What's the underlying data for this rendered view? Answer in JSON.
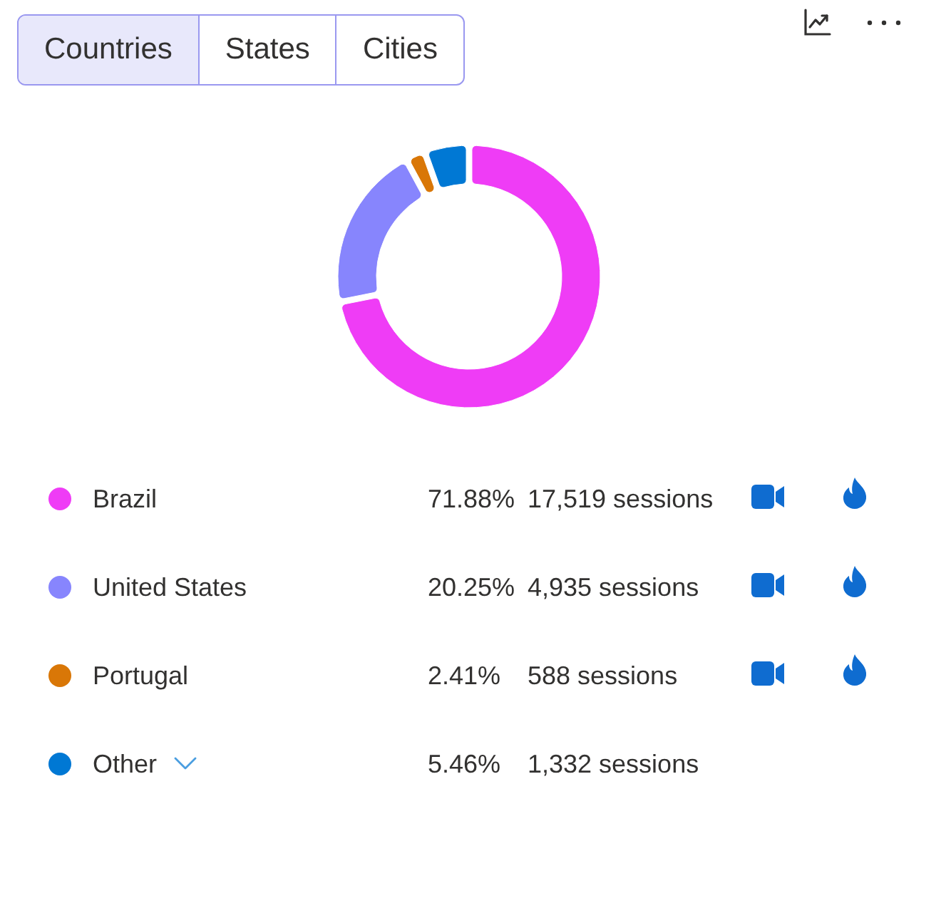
{
  "chart_data": {
    "type": "donut",
    "categories": [
      "Brazil",
      "United States",
      "Portugal",
      "Other"
    ],
    "values": [
      17519,
      4935,
      588,
      1332
    ],
    "colors": [
      "#ef3cf6",
      "#8785fd",
      "#d97707",
      "#0078d4"
    ],
    "value_labels": [
      "71.88% 17,519 sessions",
      "20.25% 4,935 sessions",
      "2.41% 588 sessions",
      "5.46% 1,332 sessions"
    ],
    "legend": "bottom",
    "annotations": [
      "Countries",
      "States",
      "Cities"
    ]
  }
}
